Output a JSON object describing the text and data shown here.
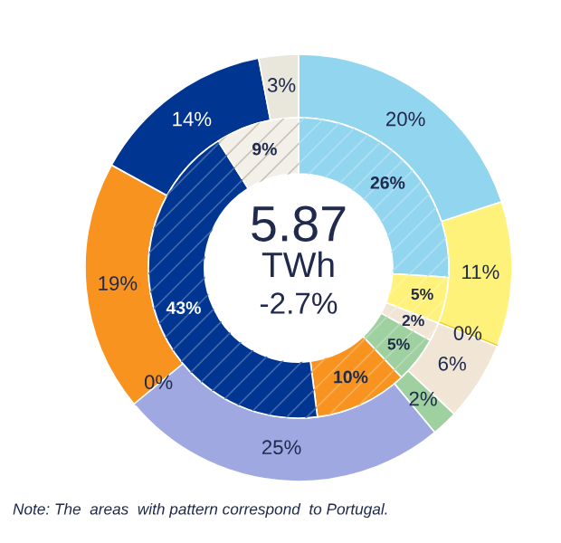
{
  "chart_data": {
    "type": "donut",
    "series": [
      {
        "values": [
          20,
          11,
          0,
          6,
          2,
          25,
          0,
          19,
          14,
          3
        ],
        "colors": [
          "#92d5ee",
          "#fff27a",
          "#f0c419",
          "#f1e6d6",
          "#9fd0a0",
          "#a0a8e2",
          "#a0a8e2",
          "#f7931e",
          "#003591",
          "#e9e6dc"
        ],
        "value_labels": [
          "20%",
          "11%",
          "0%",
          "6%",
          "2%",
          "25%",
          "0%",
          "19%",
          "14%",
          "3%"
        ]
      },
      {
        "values": [
          26,
          5,
          2,
          5,
          10,
          43,
          9
        ],
        "colors": [
          "#92d5ee",
          "#fff27a",
          "#f1e6d6",
          "#9fd0a0",
          "#f7931e",
          "#003591",
          "#f3f0ea"
        ],
        "value_labels": [
          "26%",
          "5%",
          "2%",
          "5%",
          "10%",
          "43%",
          "9%"
        ]
      }
    ],
    "annotations": [
      "5.87",
      "TWh",
      "-2.7%",
      "Note: The  areas  with pattern correspond  to Portugal."
    ]
  }
}
